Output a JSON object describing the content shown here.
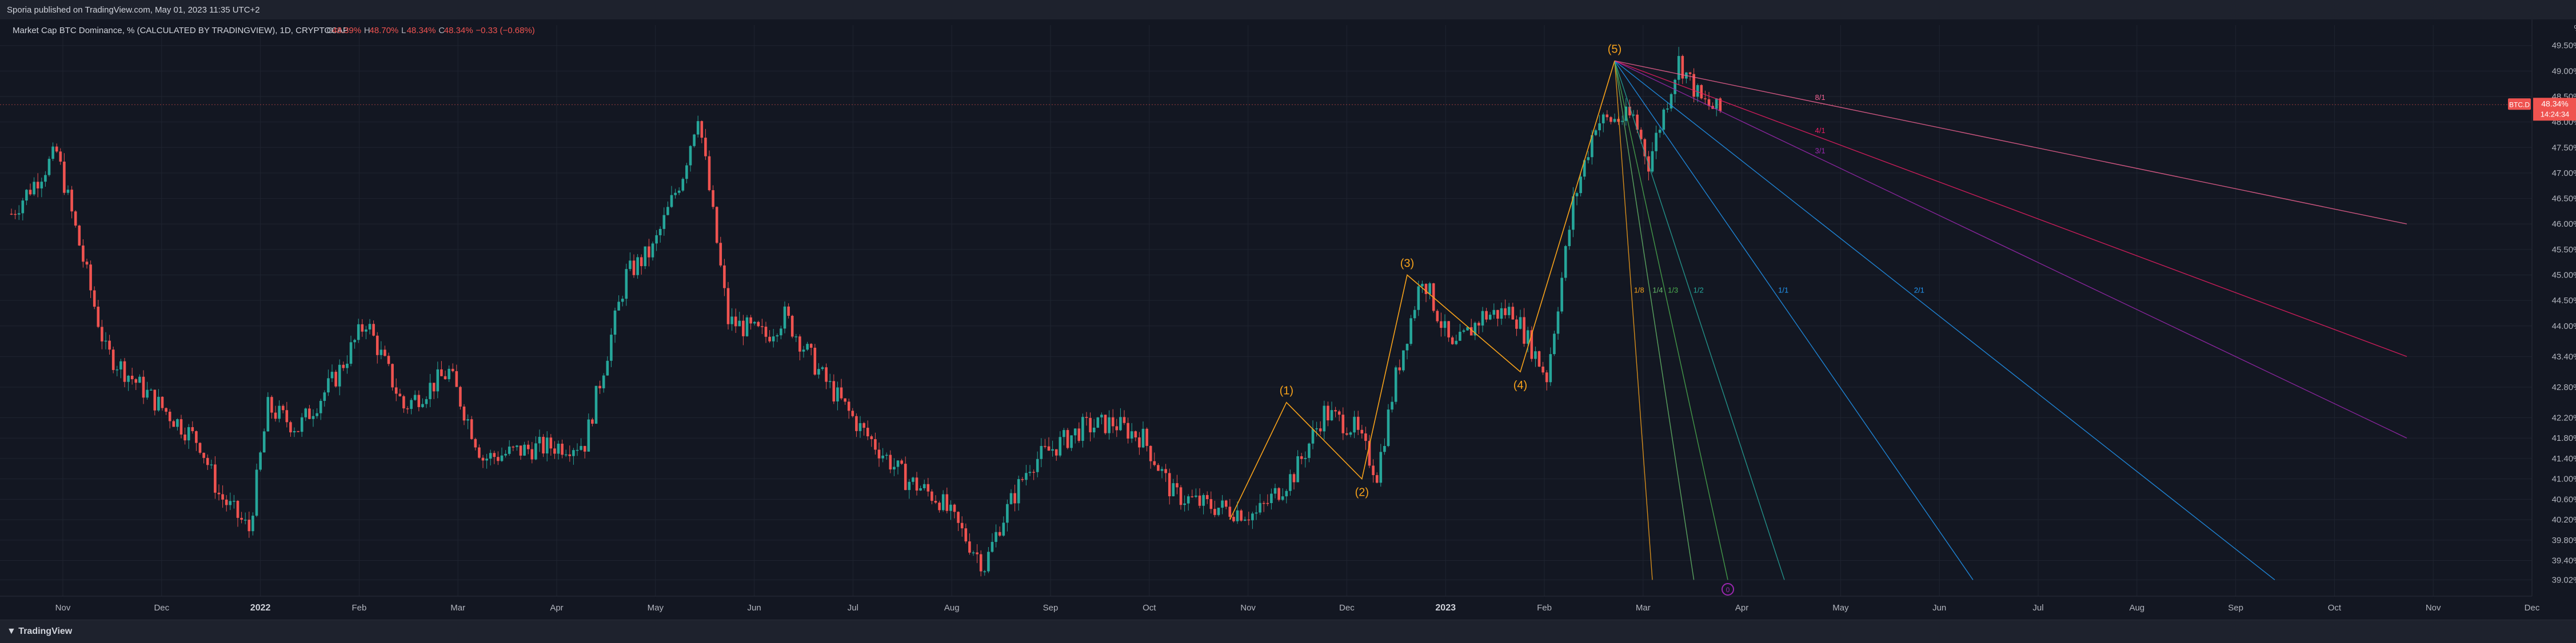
{
  "header": {
    "published": "Sporia published on TradingView.com, May 01, 2023 11:35 UTC+2"
  },
  "footer": {
    "brand": "TradingView"
  },
  "symbol": {
    "line": "Market Cap BTC Dominance, %  (CALCULATED BY TRADINGVIEW), 1D, CRYPTOCAP",
    "open_label": "O",
    "open": "48.39%",
    "high_label": "H",
    "high": "48.70%",
    "low_label": "L",
    "low": "48.34%",
    "close_label": "C",
    "close": "48.34%",
    "change": "−0.33 (−0.68%)"
  },
  "badge": {
    "ticker": "BTC.D",
    "value": "48.34%",
    "countdown": "14:24:34"
  },
  "percent_label": "%",
  "colors": {
    "up": "#26a69a",
    "down": "#ef5350",
    "wave": "#f7a21b",
    "grid": "#1f2430"
  },
  "chart_data": {
    "type": "candlestick",
    "x_labels": [
      "Nov",
      "Dec",
      "2022",
      "Feb",
      "Mar",
      "Apr",
      "May",
      "Jun",
      "Jul",
      "Aug",
      "Sep",
      "Oct",
      "Nov",
      "Dec",
      "2023",
      "Feb",
      "Mar",
      "Apr",
      "May",
      "Jun",
      "Jul",
      "Aug",
      "Sep",
      "Oct",
      "Nov",
      "Dec"
    ],
    "x_bold": [
      "2022",
      "2023"
    ],
    "y_ticks": [
      "49.50%",
      "49.00%",
      "48.50%",
      "48.00%",
      "47.50%",
      "47.00%",
      "46.50%",
      "46.00%",
      "45.50%",
      "45.00%",
      "44.50%",
      "44.00%",
      "43.40%",
      "42.80%",
      "42.20%",
      "41.80%",
      "41.40%",
      "41.00%",
      "40.60%",
      "40.20%",
      "39.80%",
      "39.40%",
      "39.02%"
    ],
    "y_tick_values": [
      49.5,
      49.0,
      48.5,
      48.0,
      47.5,
      47.0,
      46.5,
      46.0,
      45.5,
      45.0,
      44.5,
      44.0,
      43.4,
      42.8,
      42.2,
      41.8,
      41.4,
      41.0,
      40.6,
      40.2,
      39.8,
      39.4,
      39.02
    ],
    "last_price": 48.34,
    "series_path": [
      [
        0,
        46.2
      ],
      [
        12,
        47.4
      ],
      [
        25,
        43.5
      ],
      [
        37,
        42.6
      ],
      [
        50,
        41.7
      ],
      [
        55,
        40.7
      ],
      [
        63,
        40.0
      ],
      [
        68,
        42.4
      ],
      [
        76,
        42.0
      ],
      [
        86,
        43.0
      ],
      [
        94,
        44.1
      ],
      [
        104,
        42.4
      ],
      [
        116,
        43.1
      ],
      [
        125,
        41.4
      ],
      [
        138,
        41.6
      ],
      [
        152,
        41.7
      ],
      [
        163,
        45.0
      ],
      [
        170,
        45.5
      ],
      [
        178,
        47.0
      ],
      [
        182,
        48.2
      ],
      [
        190,
        44.1
      ],
      [
        200,
        43.8
      ],
      [
        205,
        44.2
      ],
      [
        215,
        43.0
      ],
      [
        225,
        42.0
      ],
      [
        237,
        41.0
      ],
      [
        246,
        40.6
      ],
      [
        258,
        39.3
      ],
      [
        262,
        40.1
      ],
      [
        270,
        41.3
      ],
      [
        284,
        42.0
      ],
      [
        292,
        42.1
      ],
      [
        300,
        41.8
      ],
      [
        308,
        40.7
      ],
      [
        316,
        40.5
      ],
      [
        330,
        40.3
      ],
      [
        340,
        41.1
      ],
      [
        348,
        42.3
      ],
      [
        356,
        42.0
      ],
      [
        362,
        41.1
      ],
      [
        367,
        43.0
      ],
      [
        374,
        45.0
      ],
      [
        382,
        43.5
      ],
      [
        390,
        44.2
      ],
      [
        398,
        44.3
      ],
      [
        407,
        43.0
      ],
      [
        414,
        46.4
      ],
      [
        420,
        48.0
      ],
      [
        430,
        48.1
      ],
      [
        434,
        47.2
      ],
      [
        442,
        49.2
      ],
      [
        448,
        48.4
      ],
      [
        453,
        48.2
      ]
    ],
    "elliott_wave": {
      "labels": [
        "(1)",
        "(2)",
        "(3)",
        "(4)",
        "(5)"
      ],
      "points": [
        [
          323,
          40.2
        ],
        [
          338,
          42.5
        ],
        [
          358,
          41.0
        ],
        [
          370,
          45.0
        ],
        [
          400,
          43.1
        ],
        [
          425,
          49.2
        ]
      ]
    },
    "fib_fans": {
      "origin": [
        425,
        49.2
      ],
      "lines": [
        {
          "label": "1/8",
          "end": [
            435,
            39.02
          ],
          "color": "#f7a21b"
        },
        {
          "label": "1/4",
          "end": [
            446,
            39.02
          ],
          "color": "#66bb6a"
        },
        {
          "label": "1/3",
          "end": [
            455,
            39.02
          ],
          "color": "#4caf50"
        },
        {
          "label": "1/2",
          "end": [
            470,
            39.02
          ],
          "color": "#26a69a"
        },
        {
          "label": "1/1",
          "end": [
            520,
            39.02
          ],
          "color": "#2196f3"
        },
        {
          "label": "2/1",
          "end": [
            600,
            39.02
          ],
          "color": "#2196f3"
        },
        {
          "label": "3/1",
          "end": [
            635,
            41.8
          ],
          "color": "#9c27b0"
        },
        {
          "label": "4/1",
          "end": [
            635,
            43.4
          ],
          "color": "#e91e63"
        },
        {
          "label": "8/1",
          "end": [
            635,
            46.0
          ],
          "color": "#f06292"
        }
      ]
    },
    "marker": "0"
  }
}
